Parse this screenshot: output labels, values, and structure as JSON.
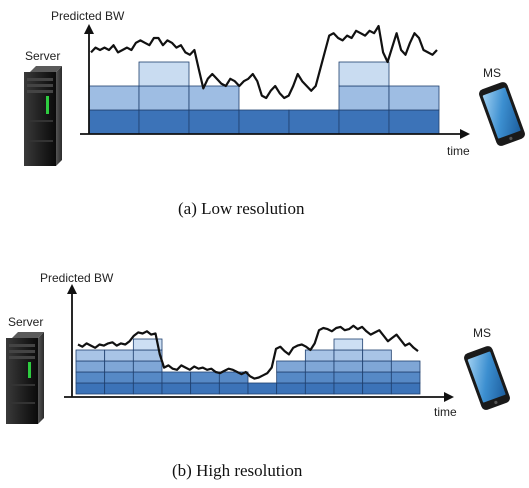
{
  "panels": [
    {
      "ylabel": "Predicted BW",
      "xlabel": "time",
      "server_label": "Server",
      "client_label": "MS",
      "caption": "(a)  Low resolution",
      "segments": [
        {
          "top_level": 2
        },
        {
          "top_level": 3
        },
        {
          "top_level": 2
        },
        {
          "top_level": 1
        },
        {
          "top_level": 1
        },
        {
          "top_level": 3
        },
        {
          "top_level": 2
        }
      ],
      "bandwidth_curve": [
        3.4,
        3.6,
        3.5,
        3.6,
        3.5,
        3.7,
        3.4,
        3.5,
        3.6,
        3.5,
        3.8,
        3.9,
        3.8,
        3.7,
        4.0,
        4.0,
        3.7,
        3.9,
        3.8,
        3.6,
        3.7,
        3.4,
        3.3,
        3.5,
        2.7,
        1.9,
        2.3,
        2.5,
        2.3,
        2.1,
        2.0,
        2.3,
        2.2,
        2.0,
        2.2,
        2.3,
        2.5,
        2.2,
        1.6,
        1.5,
        1.8,
        2.0,
        1.7,
        1.5,
        1.6,
        2.0,
        2.5,
        2.2,
        2.0,
        1.8,
        2.0,
        2.7,
        3.4,
        4.1,
        4.2,
        4.0,
        3.9,
        4.1,
        4.0,
        4.3,
        4.2,
        4.1,
        4.3,
        4.2,
        4.5,
        3.4,
        3.0,
        3.6,
        4.2,
        3.5,
        3.3,
        3.8,
        4.2,
        4.0,
        3.5,
        3.4,
        3.3,
        3.5
      ]
    },
    {
      "ylabel": "Predicted BW",
      "xlabel": "time",
      "server_label": "Server",
      "client_label": "MS",
      "caption": "(b)  High resolution",
      "segments": [
        {
          "top_level": 4
        },
        {
          "top_level": 4
        },
        {
          "top_level": 5
        },
        {
          "top_level": 2
        },
        {
          "top_level": 2
        },
        {
          "top_level": 2
        },
        {
          "top_level": 1
        },
        {
          "top_level": 3
        },
        {
          "top_level": 4
        },
        {
          "top_level": 5
        },
        {
          "top_level": 4
        },
        {
          "top_level": 3
        }
      ],
      "bandwidth_curve": [
        4.5,
        4.3,
        4.6,
        4.4,
        4.2,
        4.5,
        4.4,
        4.6,
        4.7,
        4.4,
        4.6,
        4.5,
        4.8,
        5.3,
        5.6,
        5.5,
        5.7,
        5.4,
        5.5,
        3.6,
        2.4,
        2.6,
        2.3,
        2.2,
        2.6,
        2.4,
        2.2,
        2.5,
        2.3,
        2.4,
        2.2,
        2.3,
        2.0,
        1.9,
        2.1,
        2.3,
        2.2,
        2.0,
        1.8,
        2.0,
        1.6,
        1.4,
        1.5,
        1.7,
        1.9,
        2.4,
        4.1,
        4.3,
        3.9,
        3.6,
        4.2,
        4.4,
        4.5,
        4.3,
        4.0,
        4.6,
        5.8,
        6.0,
        5.9,
        5.7,
        6.0,
        6.1,
        5.8,
        5.9,
        6.2,
        5.9,
        6.1,
        5.7,
        5.4,
        5.6,
        5.8,
        5.3,
        4.8,
        5.1,
        5.4,
        4.9,
        4.4,
        4.6,
        4.2,
        3.9
      ]
    }
  ]
}
